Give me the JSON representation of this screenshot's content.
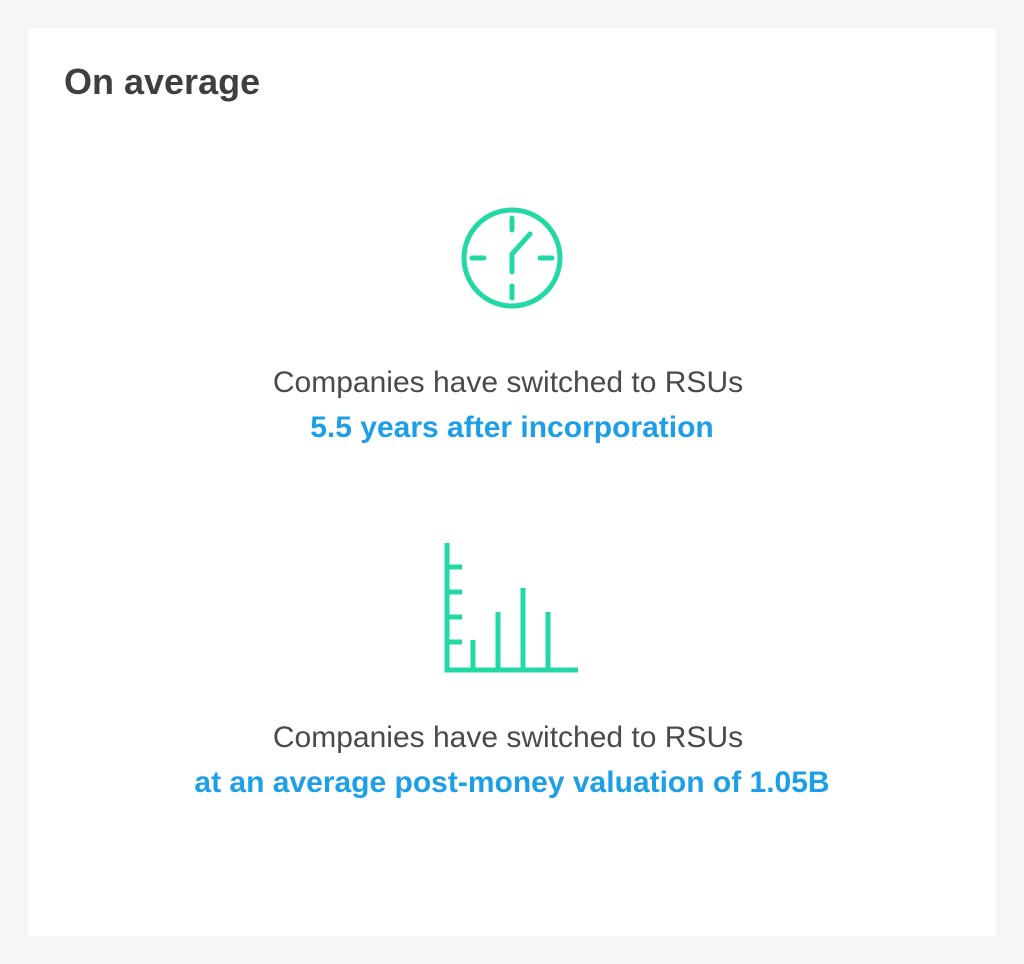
{
  "card": {
    "title": "On average",
    "stats": [
      {
        "label": "Companies have switched to RSUs",
        "value": "5.5 years after incorporation"
      },
      {
        "label": "Companies have switched to RSUs",
        "value": "at an average post-money valuation of 1.05B"
      }
    ]
  }
}
